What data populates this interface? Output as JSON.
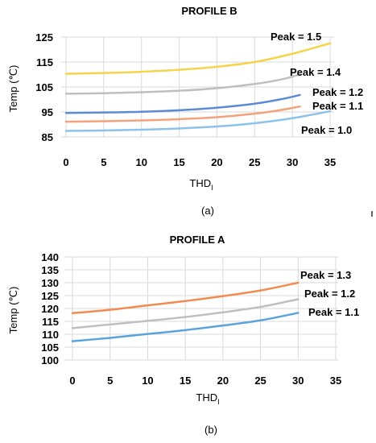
{
  "chart_data": [
    {
      "type": "line",
      "title": "PROFILE B",
      "xlabel": "THD",
      "xlabel_sub": "I",
      "ylabel": "Temp (℃)",
      "caption": "(a)",
      "xlim": [
        0,
        35
      ],
      "ylim": [
        85,
        125
      ],
      "xticks": [
        0,
        5,
        10,
        15,
        20,
        25,
        30,
        35
      ],
      "yticks": [
        85,
        95,
        105,
        115,
        125
      ],
      "grid": true,
      "series": [
        {
          "name": "Peak = 1.5",
          "color": "#f5d44b",
          "x": [
            0,
            5,
            10,
            15,
            20,
            25,
            30,
            35
          ],
          "y": [
            110.3,
            110.6,
            111.1,
            111.9,
            113.1,
            115.0,
            118.3,
            122.5
          ]
        },
        {
          "name": "Peak = 1.4",
          "color": "#bfbfbf",
          "x": [
            0,
            5,
            10,
            15,
            20,
            25,
            28.5,
            31
          ],
          "y": [
            102.3,
            102.5,
            102.9,
            103.5,
            104.5,
            106.2,
            108.0,
            110.0
          ]
        },
        {
          "name": "Peak = 1.2",
          "color": "#5b8bd4",
          "x": [
            0,
            5,
            10,
            15,
            20,
            25,
            28.5,
            31
          ],
          "y": [
            94.6,
            94.8,
            95.1,
            95.7,
            96.7,
            98.3,
            100.1,
            101.8
          ]
        },
        {
          "name": "Peak = 1.1",
          "color": "#f4a27c",
          "x": [
            0,
            5,
            10,
            15,
            20,
            25,
            28.5,
            31
          ],
          "y": [
            91.1,
            91.3,
            91.6,
            92.1,
            92.9,
            94.3,
            95.8,
            97.2
          ]
        },
        {
          "name": "Peak = 1.0",
          "color": "#8dc2ea",
          "x": [
            0,
            5,
            10,
            15,
            20,
            25,
            30,
            35
          ],
          "y": [
            87.4,
            87.6,
            87.9,
            88.4,
            89.2,
            90.5,
            92.5,
            95.3
          ]
        }
      ]
    },
    {
      "type": "line",
      "title": "PROFILE A",
      "xlabel": "THD",
      "xlabel_sub": "I",
      "ylabel": "Temp (℃)",
      "caption": "(b)",
      "xlim": [
        0,
        35
      ],
      "ylim": [
        100,
        140
      ],
      "xticks": [
        0,
        5,
        10,
        15,
        20,
        25,
        30,
        35
      ],
      "yticks": [
        100,
        105,
        110,
        115,
        120,
        125,
        130,
        135,
        140
      ],
      "grid": true,
      "series": [
        {
          "name": "Peak = 1.3",
          "color": "#f28b4f",
          "x": [
            0,
            5,
            10,
            15,
            20,
            25,
            30
          ],
          "y": [
            118.2,
            119.5,
            121.2,
            122.9,
            124.8,
            127.0,
            130.0
          ]
        },
        {
          "name": "Peak = 1.2",
          "color": "#bfbfbf",
          "x": [
            0,
            5,
            10,
            15,
            20,
            25,
            30
          ],
          "y": [
            112.4,
            113.8,
            115.2,
            116.7,
            118.5,
            120.6,
            123.6
          ]
        },
        {
          "name": "Peak = 1.1",
          "color": "#5ba3dc",
          "x": [
            0,
            5,
            10,
            15,
            20,
            25,
            30
          ],
          "y": [
            107.3,
            108.6,
            110.1,
            111.6,
            113.4,
            115.4,
            118.3
          ]
        }
      ]
    }
  ]
}
